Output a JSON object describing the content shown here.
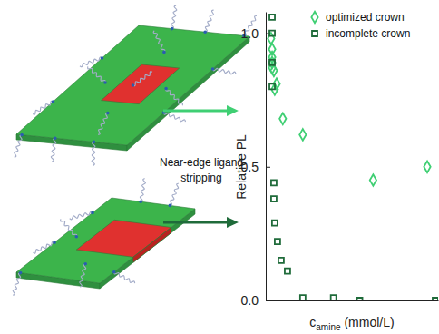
{
  "chart_data": {
    "type": "scatter",
    "xlabel": "camine (mmol/L)",
    "ylabel": "Relative PL",
    "annotations": [
      "Near-edge ligand",
      "stripping"
    ],
    "xlim": [
      0,
      10
    ],
    "ylim": [
      0,
      1.08
    ],
    "yticks": [
      {
        "value": 0,
        "label": "0.0"
      },
      {
        "value": 0.5,
        "label": "0.5"
      },
      {
        "value": 1,
        "label": "1.0"
      }
    ],
    "tick_labels": "y",
    "legend": "top-right",
    "series": [
      {
        "name": "optimized crown",
        "color": "#3fcf73",
        "marker": "diamond",
        "x": [
          0.31,
          0.37,
          0.37,
          0.37,
          0.37,
          0.47,
          0.63,
          0.52,
          0.99,
          2.15,
          6.23,
          9.37
        ],
        "values": [
          0.98,
          0.94,
          0.91,
          0.89,
          0.87,
          0.86,
          0.81,
          0.79,
          0.68,
          0.62,
          0.45,
          0.5
        ]
      },
      {
        "name": "incomplete crown",
        "color": "#1f6b3a",
        "marker": "square",
        "x": [
          0.37,
          0.37,
          0.37,
          0.37,
          0.47,
          0.47,
          0.52,
          0.68,
          0.89,
          1.26,
          2.15,
          3.93,
          5.45,
          9.84
        ],
        "values": [
          1.06,
          1.0,
          0.89,
          0.8,
          0.44,
          0.38,
          0.29,
          0.22,
          0.15,
          0.11,
          0.01,
          0.01,
          0.0,
          0.0
        ]
      }
    ]
  }
}
